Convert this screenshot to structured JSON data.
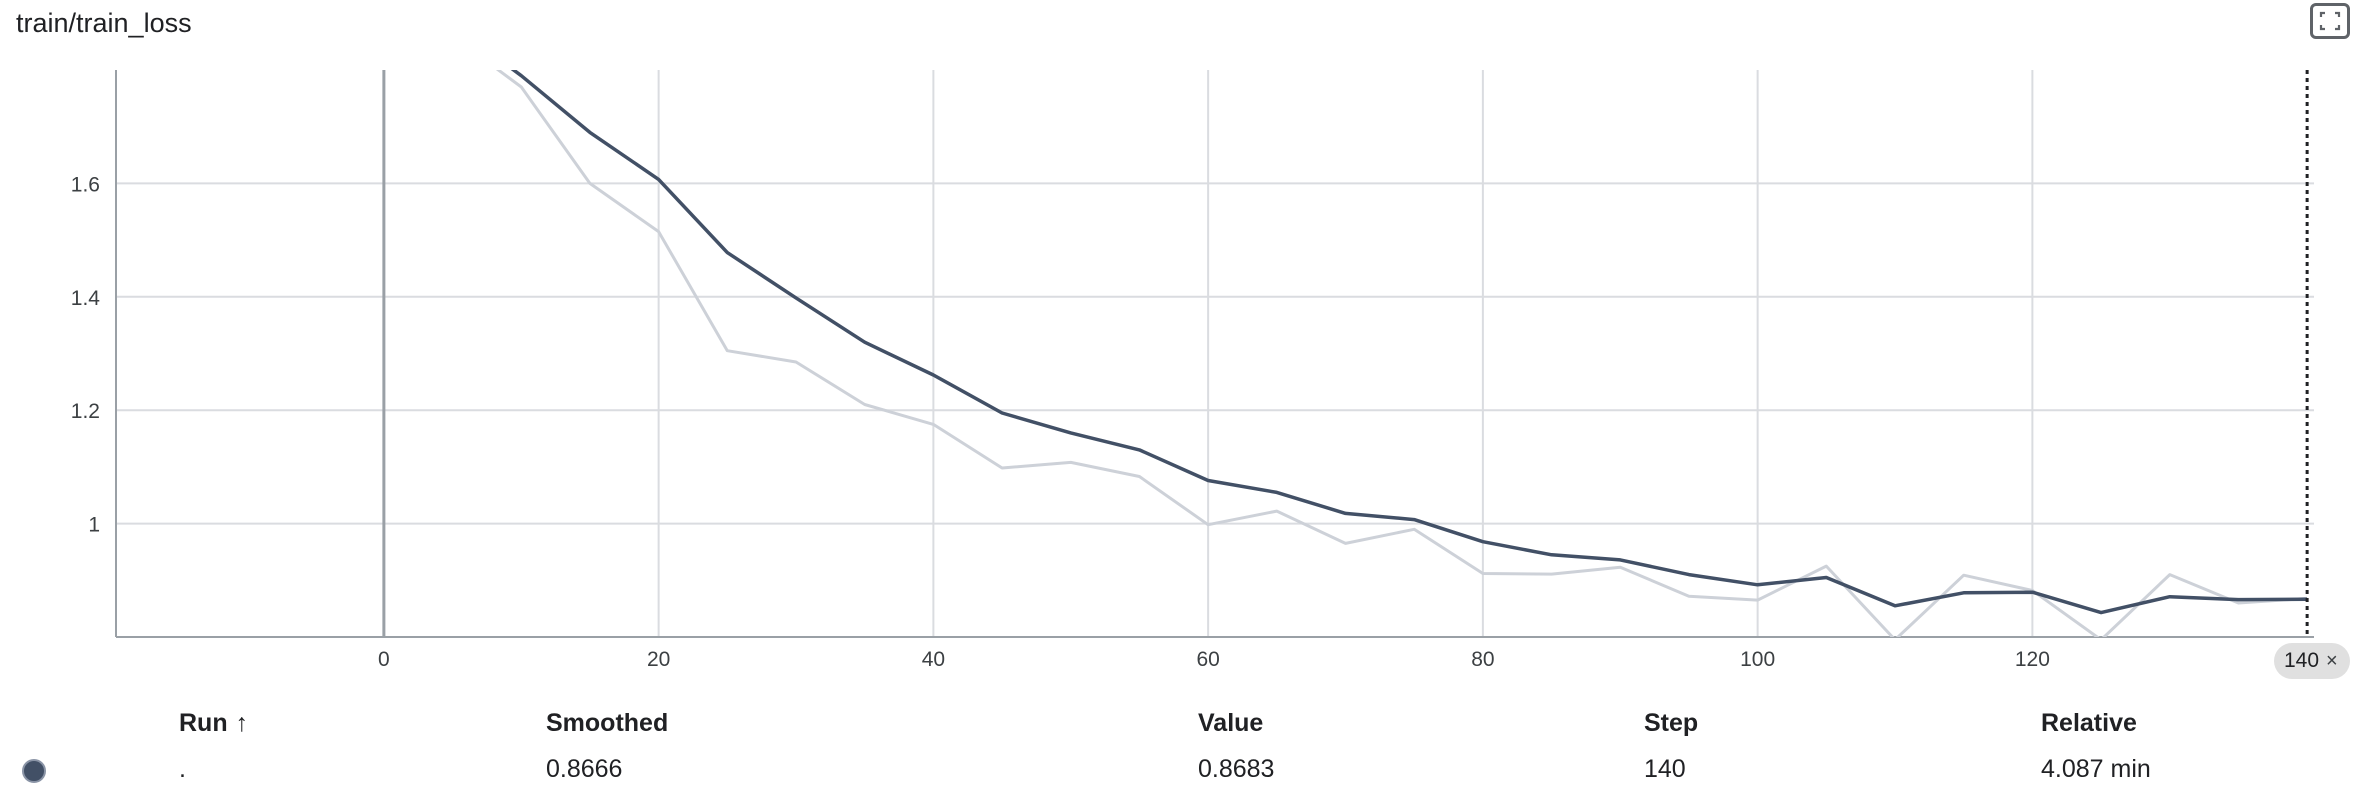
{
  "card": {
    "title": "train/train_loss",
    "fullscreen_icon": "fullscreen-icon"
  },
  "chart_data": {
    "type": "line",
    "title": "train/train_loss",
    "xlabel": "",
    "ylabel": "",
    "xlim": [
      -19.5,
      140.5
    ],
    "ylim": [
      0.8,
      1.8
    ],
    "x_ticks": [
      0,
      20,
      40,
      60,
      80,
      100,
      120
    ],
    "y_ticks": [
      1,
      1.2,
      1.4,
      1.6
    ],
    "grid": true,
    "series": [
      {
        "name": "Value",
        "color": "#cdd1d8",
        "x": [
          0,
          5,
          10,
          15,
          20,
          25,
          30,
          35,
          40,
          45,
          50,
          55,
          60,
          65,
          70,
          75,
          80,
          85,
          90,
          95,
          100,
          105,
          110,
          115,
          120,
          125,
          130,
          135,
          140
        ],
        "y": [
          2.0,
          1.86,
          1.77,
          1.6,
          1.515,
          1.305,
          1.285,
          1.21,
          1.175,
          1.098,
          1.108,
          1.083,
          0.998,
          1.022,
          0.965,
          0.99,
          0.912,
          0.911,
          0.923,
          0.872,
          0.865,
          0.925,
          0.795,
          0.909,
          0.882,
          0.795,
          0.91,
          0.86,
          0.868
        ]
      },
      {
        "name": "Smoothed",
        "color": "#425066",
        "x": [
          0,
          5,
          10,
          15,
          20,
          25,
          30,
          35,
          40,
          45,
          50,
          55,
          60,
          65,
          70,
          75,
          80,
          85,
          90,
          95,
          100,
          105,
          110,
          115,
          120,
          125,
          130,
          135,
          140
        ],
        "y": [
          2.0,
          1.88,
          1.79,
          1.69,
          1.607,
          1.478,
          1.398,
          1.32,
          1.262,
          1.195,
          1.16,
          1.13,
          1.076,
          1.055,
          1.018,
          1.007,
          0.968,
          0.945,
          0.936,
          0.91,
          0.892,
          0.905,
          0.855,
          0.878,
          0.879,
          0.843,
          0.871,
          0.866,
          0.8666
        ]
      }
    ],
    "hover_step": 140
  },
  "step_chip": {
    "label": "140",
    "close_glyph": "×"
  },
  "table": {
    "headers": {
      "run": "Run",
      "run_sort_glyph": "↑",
      "smoothed": "Smoothed",
      "value": "Value",
      "step": "Step",
      "relative": "Relative"
    },
    "rows": [
      {
        "run": ".",
        "color": "#425066",
        "smoothed": "0.8666",
        "value": "0.8683",
        "step": "140",
        "relative": "4.087 min"
      }
    ]
  }
}
